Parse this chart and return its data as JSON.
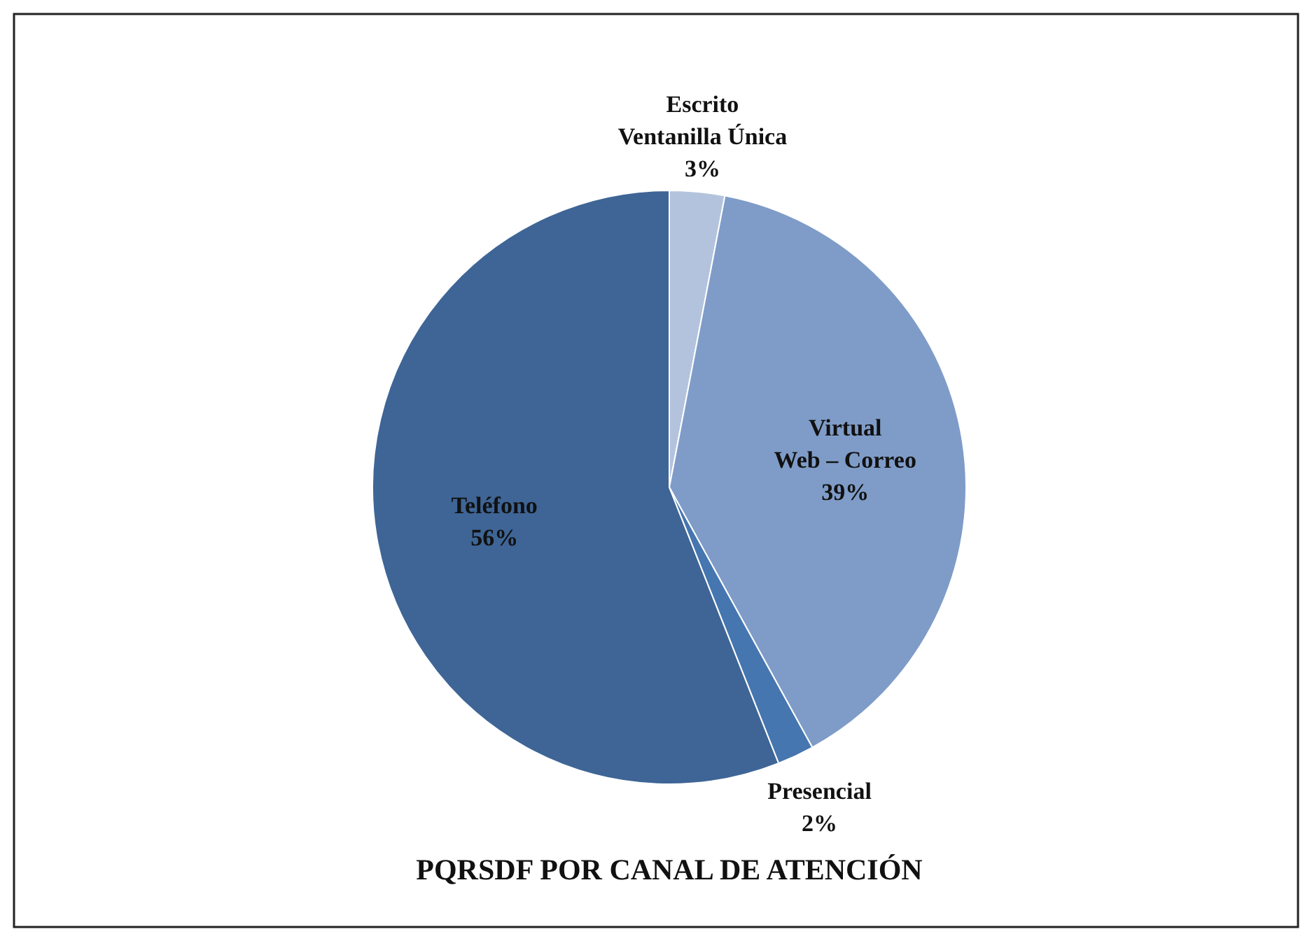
{
  "chart_data": {
    "type": "pie",
    "title": "PQRSDF POR CANAL DE ATENCIÓN",
    "categories": [
      "Escrito\nVentanilla Única",
      "Virtual\nWeb – Correo",
      "Presencial",
      "Teléfono"
    ],
    "values": [
      3,
      39,
      2,
      56
    ],
    "colors": [
      "#b4c3dd",
      "#7f9cc8",
      "#4576b0",
      "#3e6596"
    ],
    "value_labels": [
      "3%",
      "39%",
      "2%",
      "56%"
    ]
  }
}
